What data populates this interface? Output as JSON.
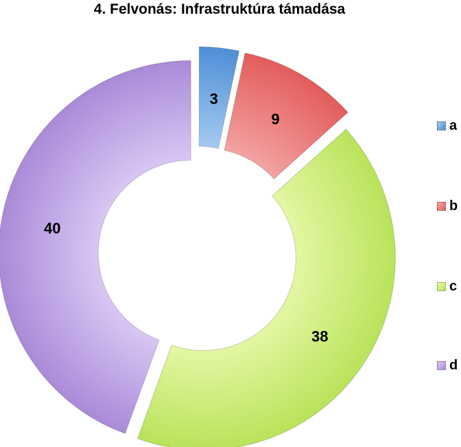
{
  "chart_data": {
    "type": "pie",
    "variant": "exploded-doughnut",
    "title": "4. Felvonás: Infrastruktúra támadása",
    "categories": [
      "a",
      "b",
      "c",
      "d"
    ],
    "values": [
      3,
      9,
      38,
      40
    ],
    "colors": [
      "#4f8fd6",
      "#e35c5c",
      "#b9e35a",
      "#a98ad8"
    ],
    "gradient_light": [
      "#a9cdf2",
      "#f3a8a6",
      "#e6f8a8",
      "#dccaf5"
    ],
    "legend": {
      "position": "right",
      "entries": [
        "a",
        "b",
        "c",
        "d"
      ]
    }
  }
}
